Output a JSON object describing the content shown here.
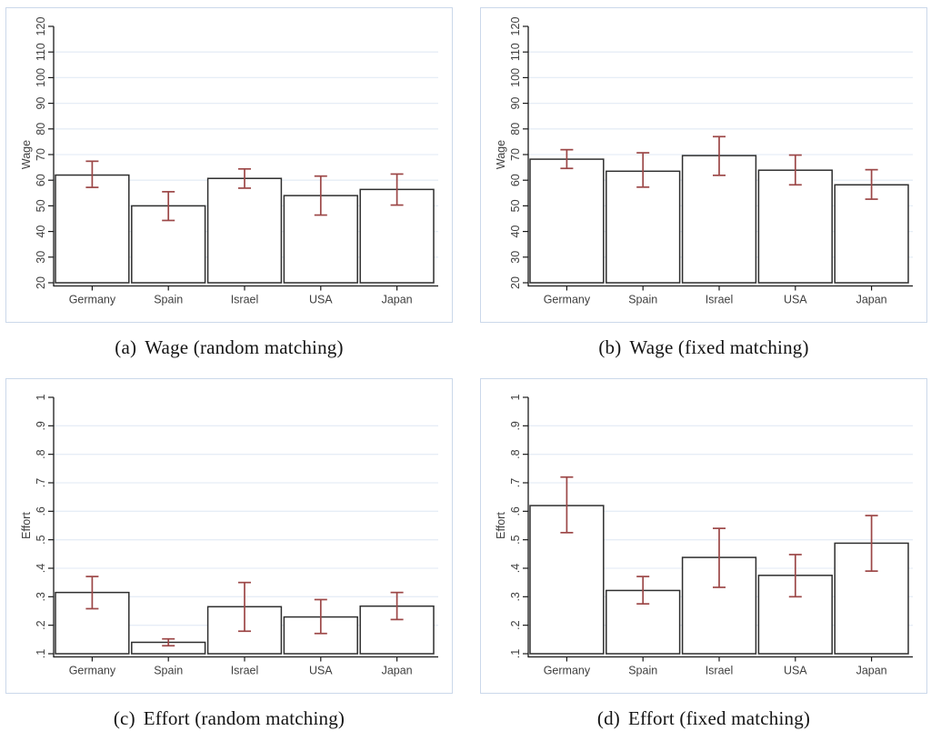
{
  "figure": {
    "description": "Four Stata-style bar charts with 95% confidence interval bars comparing wage and effort across countries",
    "countries": [
      "Germany",
      "Spain",
      "Israel",
      "USA",
      "Japan"
    ]
  },
  "colors": {
    "bar_fill": "#ffffff",
    "bar_stroke": "#2e2e2e",
    "error_bar": "#9c4747",
    "gridline": "#e6edf6",
    "axis_line": "#1a1a1a",
    "tick_label": "#3f3f3f",
    "axis_title": "#3f3f3f",
    "panel_border": "#cbd8ea",
    "caption_text": "#141414"
  },
  "chart_data": [
    {
      "type": "bar",
      "panel_label": "(a)",
      "caption": "Wage (random matching)",
      "ylabel": "Wage",
      "ylim": [
        20,
        120
      ],
      "grid": true,
      "legend": "none",
      "ytick_values": [
        20,
        30,
        40,
        50,
        60,
        70,
        80,
        90,
        100,
        110,
        120
      ],
      "ytick_labels": [
        "20",
        "30",
        "40",
        "50",
        "60",
        "70",
        "80",
        "90",
        "100",
        "110",
        "120"
      ],
      "categories": [
        "Germany",
        "Spain",
        "Israel",
        "USA",
        "Japan"
      ],
      "values": [
        62,
        50,
        60.7,
        54,
        56.4
      ],
      "ci_low": [
        57.2,
        44.3,
        56.9,
        46.4,
        50.3
      ],
      "ci_high": [
        67.4,
        55.5,
        64.4,
        61.6,
        62.4
      ]
    },
    {
      "type": "bar",
      "panel_label": "(b)",
      "caption": "Wage (fixed matching)",
      "ylabel": "Wage",
      "ylim": [
        20,
        120
      ],
      "grid": true,
      "legend": "none",
      "ytick_values": [
        20,
        30,
        40,
        50,
        60,
        70,
        80,
        90,
        100,
        110,
        120
      ],
      "ytick_labels": [
        "20",
        "30",
        "40",
        "50",
        "60",
        "70",
        "80",
        "90",
        "100",
        "110",
        "120"
      ],
      "categories": [
        "Germany",
        "Spain",
        "Israel",
        "USA",
        "Japan"
      ],
      "values": [
        68.2,
        63.5,
        69.6,
        63.9,
        58.2
      ],
      "ci_low": [
        64.6,
        57.3,
        61.9,
        58.2,
        52.6
      ],
      "ci_high": [
        71.9,
        70.7,
        77.0,
        69.8,
        64.1
      ]
    },
    {
      "type": "bar",
      "panel_label": "(c)",
      "caption": "Effort (random matching)",
      "ylabel": "Effort",
      "ylim": [
        0.1,
        1
      ],
      "grid": true,
      "legend": "none",
      "ytick_values": [
        0.1,
        0.2,
        0.3,
        0.4,
        0.5,
        0.6,
        0.7,
        0.8,
        0.9,
        1
      ],
      "ytick_labels": [
        ".1",
        ".2",
        ".3",
        ".4",
        ".5",
        ".6",
        ".7",
        ".8",
        ".9",
        "1"
      ],
      "categories": [
        "Germany",
        "Spain",
        "Israel",
        "USA",
        "Japan"
      ],
      "values": [
        0.315,
        0.14,
        0.265,
        0.229,
        0.267
      ],
      "ci_low": [
        0.258,
        0.128,
        0.179,
        0.171,
        0.22
      ],
      "ci_high": [
        0.371,
        0.152,
        0.35,
        0.29,
        0.315
      ]
    },
    {
      "type": "bar",
      "panel_label": "(d)",
      "caption": "Effort (fixed matching)",
      "ylabel": "Effort",
      "ylim": [
        0.1,
        1
      ],
      "grid": true,
      "legend": "none",
      "ytick_values": [
        0.1,
        0.2,
        0.3,
        0.4,
        0.5,
        0.6,
        0.7,
        0.8,
        0.9,
        1
      ],
      "ytick_labels": [
        ".1",
        ".2",
        ".3",
        ".4",
        ".5",
        ".6",
        ".7",
        ".8",
        ".9",
        "1"
      ],
      "categories": [
        "Germany",
        "Spain",
        "Israel",
        "USA",
        "Japan"
      ],
      "values": [
        0.62,
        0.322,
        0.438,
        0.375,
        0.488
      ],
      "ci_low": [
        0.525,
        0.275,
        0.333,
        0.3,
        0.39
      ],
      "ci_high": [
        0.72,
        0.371,
        0.54,
        0.448,
        0.585
      ]
    }
  ]
}
